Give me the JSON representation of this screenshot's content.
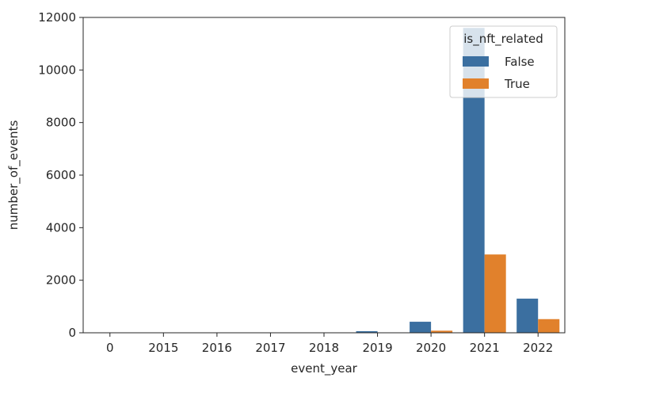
{
  "chart_data": {
    "type": "bar",
    "categories": [
      "0",
      "2015",
      "2016",
      "2017",
      "2018",
      "2019",
      "2020",
      "2021",
      "2022"
    ],
    "series": [
      {
        "name": "False",
        "color": "#3b6fa0",
        "values": [
          2,
          2,
          2,
          2,
          2,
          60,
          420,
          11600,
          1300
        ]
      },
      {
        "name": "True",
        "color": "#e1812c",
        "values": [
          0,
          0,
          0,
          0,
          0,
          5,
          80,
          2980,
          520
        ]
      }
    ],
    "title": "",
    "xlabel": "event_year",
    "ylabel": "number_of_events",
    "ylim": [
      0,
      12000
    ],
    "yticks": [
      "0",
      "2000",
      "4000",
      "6000",
      "8000",
      "10000",
      "12000"
    ],
    "grid": false,
    "legend": {
      "title": "is_nft_related",
      "placement": "top-right"
    }
  }
}
